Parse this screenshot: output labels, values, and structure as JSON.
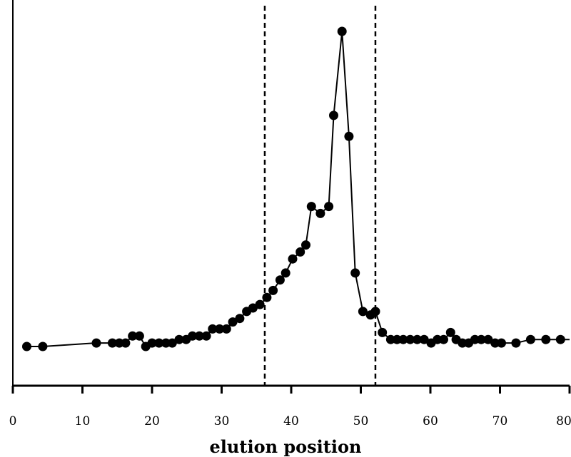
{
  "chart_data": {
    "type": "line",
    "title": "",
    "xlabel": "elution position",
    "ylabel": "",
    "xlim": [
      0,
      80
    ],
    "ylim": [
      0,
      1
    ],
    "x_ticks": [
      0,
      10,
      20,
      30,
      40,
      50,
      60,
      70,
      80
    ],
    "x_tick_labels": [
      "0",
      "10",
      "20",
      "30",
      "40",
      "50",
      "60",
      "70",
      "80"
    ],
    "y_ticks": [],
    "grid": false,
    "legend": "none",
    "reference_lines": [
      {
        "orientation": "vertical",
        "x": 36.2,
        "style": "dashed"
      },
      {
        "orientation": "vertical",
        "x": 52.1,
        "style": "dashed"
      }
    ],
    "series": [
      {
        "marker": "filled-circle",
        "color": "#000000",
        "x": [
          2,
          4.3,
          12,
          14.3,
          15.3,
          16.2,
          17.2,
          18.2,
          19.1,
          20,
          21,
          22,
          22.9,
          23.9,
          24.9,
          25.8,
          26.8,
          27.8,
          28.7,
          29.7,
          30.7,
          31.6,
          32.6,
          33.6,
          34.5,
          35.5,
          36.5,
          37.4,
          38.4,
          39.2,
          40.2,
          41.3,
          42.1,
          42.9,
          44.2,
          45.4,
          46.1,
          47.3,
          48.3,
          49.2,
          50.3,
          51.4,
          52.1,
          53.1,
          54.3,
          55.2,
          56.1,
          57.1,
          58.1,
          59.1,
          60.1,
          61,
          61.9,
          62.9,
          63.7,
          64.6,
          65.5,
          66.4,
          67.3,
          68.3,
          69.3,
          70.2,
          72.3,
          74.4,
          76.6,
          78.7
        ],
        "y": [
          0.1,
          0.1,
          0.11,
          0.11,
          0.11,
          0.11,
          0.13,
          0.13,
          0.1,
          0.11,
          0.11,
          0.11,
          0.11,
          0.12,
          0.12,
          0.13,
          0.13,
          0.13,
          0.15,
          0.15,
          0.15,
          0.17,
          0.18,
          0.2,
          0.21,
          0.22,
          0.24,
          0.26,
          0.29,
          0.31,
          0.35,
          0.37,
          0.39,
          0.5,
          0.48,
          0.5,
          0.76,
          1.0,
          0.7,
          0.31,
          0.2,
          0.19,
          0.2,
          0.14,
          0.12,
          0.12,
          0.12,
          0.12,
          0.12,
          0.12,
          0.11,
          0.12,
          0.12,
          0.14,
          0.12,
          0.11,
          0.11,
          0.12,
          0.12,
          0.12,
          0.11,
          0.11,
          0.11,
          0.12,
          0.12,
          0.12
        ]
      }
    ]
  }
}
